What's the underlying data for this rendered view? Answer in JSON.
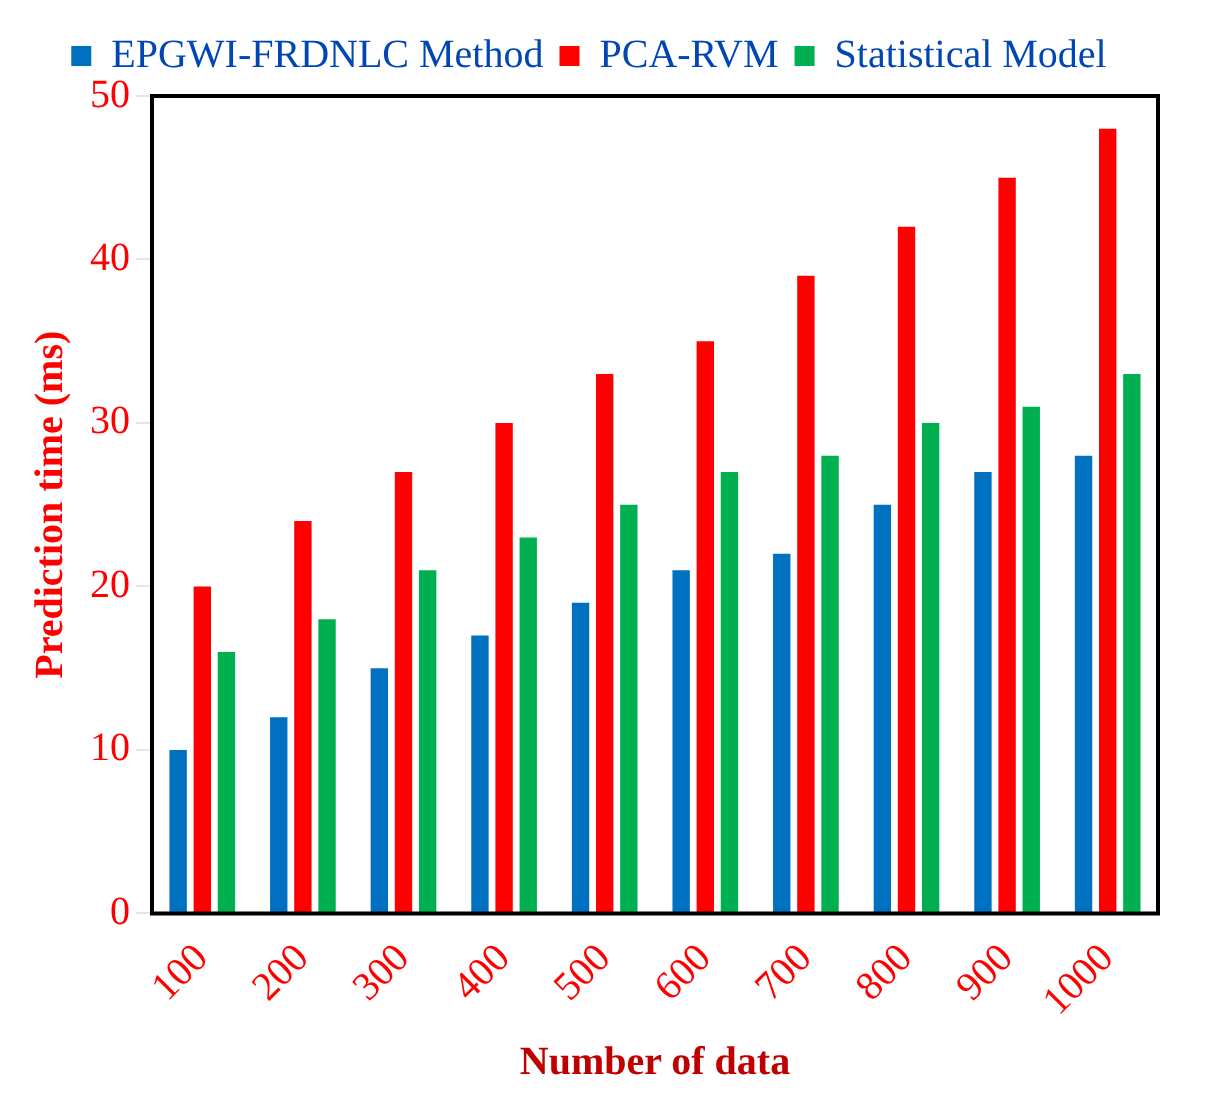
{
  "chart_data": {
    "type": "bar",
    "xlabel": "Number of data",
    "ylabel": "Prediction time (ms)",
    "categories": [
      "100",
      "200",
      "300",
      "400",
      "500",
      "600",
      "700",
      "800",
      "900",
      "1000"
    ],
    "series": [
      {
        "name": "EPGWI-FRDNLC Method",
        "color": "#0070c0",
        "values": [
          10,
          12,
          15,
          17,
          19,
          21,
          22,
          25,
          27,
          28
        ]
      },
      {
        "name": "PCA-RVM",
        "color": "#ff0000",
        "values": [
          20,
          24,
          27,
          30,
          33,
          35,
          39,
          42,
          45,
          48
        ]
      },
      {
        "name": "Statistical Model",
        "color": "#00b050",
        "values": [
          16,
          18,
          21,
          23,
          25,
          27,
          28,
          30,
          31,
          33
        ]
      }
    ],
    "ylim": [
      0,
      50
    ],
    "yticks": [
      0,
      10,
      20,
      30,
      40,
      50
    ],
    "grid": false,
    "legend": "top"
  }
}
